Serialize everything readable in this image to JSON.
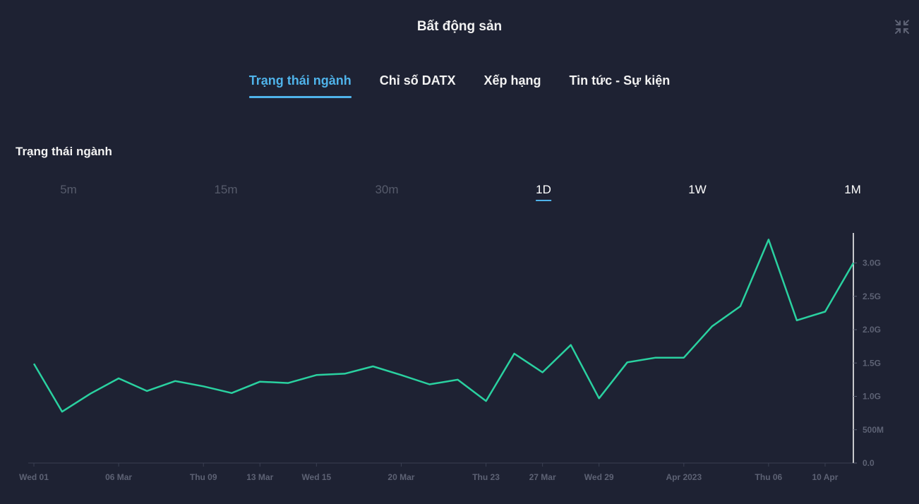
{
  "header": {
    "title": "Bất động sản"
  },
  "tabs": [
    {
      "label": "Trạng thái ngành",
      "active": true
    },
    {
      "label": "Chỉ số DATX",
      "active": false
    },
    {
      "label": "Xếp hạng",
      "active": false
    },
    {
      "label": "Tin tức - Sự kiện",
      "active": false
    }
  ],
  "section": {
    "title": "Trạng thái ngành"
  },
  "timeframes": [
    {
      "label": "5m",
      "enabled": false,
      "selected": false
    },
    {
      "label": "15m",
      "enabled": false,
      "selected": false
    },
    {
      "label": "30m",
      "enabled": false,
      "selected": false
    },
    {
      "label": "1D",
      "enabled": true,
      "selected": true
    },
    {
      "label": "1W",
      "enabled": true,
      "selected": false
    },
    {
      "label": "1M",
      "enabled": true,
      "selected": false
    }
  ],
  "colors": {
    "line": "#2ad1a0",
    "accent": "#4fb3ea",
    "background": "#1e2233",
    "axis_text": "#5d6274"
  },
  "icons": {
    "collapse": "collapse-arrows-icon"
  },
  "chart_data": {
    "type": "line",
    "title": "",
    "xlabel": "",
    "ylabel": "",
    "grid": false,
    "x_ticks": [
      "Wed 01",
      "06 Mar",
      "Thu 09",
      "13 Mar",
      "Wed 15",
      "20 Mar",
      "Thu 23",
      "27 Mar",
      "Wed 29",
      "Apr 2023",
      "Thu 06",
      "10 Apr"
    ],
    "y_ticks": [
      "0.0",
      "500M",
      "1.0G",
      "1.5G",
      "2.0G",
      "2.5G",
      "3.0G"
    ],
    "y_tick_values": [
      0,
      0.5,
      1.0,
      1.5,
      2.0,
      2.5,
      3.0
    ],
    "ylim": [
      0,
      3.45
    ],
    "y_unit": "G",
    "series": [
      {
        "x": [
          "2023-03-01",
          "2023-03-02",
          "2023-03-03",
          "2023-03-06",
          "2023-03-07",
          "2023-03-08",
          "2023-03-09",
          "2023-03-10",
          "2023-03-13",
          "2023-03-14",
          "2023-03-15",
          "2023-03-16",
          "2023-03-17",
          "2023-03-20",
          "2023-03-21",
          "2023-03-22",
          "2023-03-23",
          "2023-03-24",
          "2023-03-27",
          "2023-03-28",
          "2023-03-29",
          "2023-03-30",
          "2023-03-31",
          "2023-04-03",
          "2023-04-04",
          "2023-04-05",
          "2023-04-06",
          "2023-04-07",
          "2023-04-10",
          "2023-04-11"
        ],
        "values": [
          1.49,
          0.77,
          1.04,
          1.27,
          1.08,
          1.23,
          1.15,
          1.05,
          1.22,
          1.2,
          1.32,
          1.34,
          1.45,
          1.32,
          1.18,
          1.25,
          0.93,
          1.64,
          1.36,
          1.77,
          0.97,
          1.51,
          1.58,
          1.58,
          2.05,
          2.35,
          3.35,
          2.14,
          2.27,
          3.0
        ]
      }
    ]
  }
}
